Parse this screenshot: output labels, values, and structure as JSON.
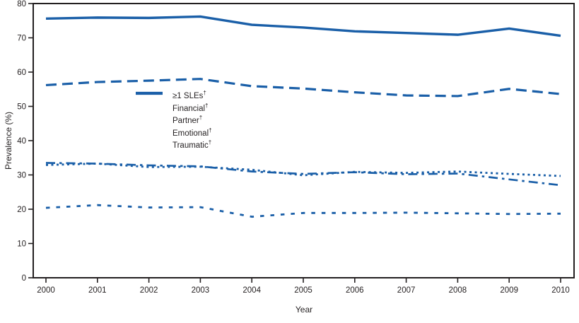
{
  "chart_data": {
    "type": "line",
    "title": "",
    "xlabel": "Year",
    "ylabel": "Prevalence (%)",
    "x": [
      2000,
      2001,
      2002,
      2003,
      2004,
      2005,
      2006,
      2007,
      2008,
      2009,
      2010
    ],
    "xlim": [
      2000,
      2010
    ],
    "ylim": [
      0,
      80
    ],
    "ytick_interval": 10,
    "yticks": [
      0,
      10,
      20,
      30,
      40,
      50,
      60,
      70,
      80
    ],
    "grid": false,
    "legend_position": "inside-upper-left",
    "line_color": "#1a5fa8",
    "axis_color": "#231f20",
    "background_color": "#ffffff",
    "series": [
      {
        "name": "≥1 SLEs",
        "superscript": "†",
        "line_style": "solid",
        "values": [
          75.6,
          75.9,
          75.8,
          76.2,
          73.8,
          73.0,
          71.9,
          71.4,
          70.9,
          72.7,
          70.6
        ]
      },
      {
        "name": "Financial",
        "superscript": "†",
        "line_style": "long-dash",
        "values": [
          56.2,
          57.1,
          57.5,
          58.0,
          55.9,
          55.2,
          54.1,
          53.2,
          53.0,
          55.1,
          53.6
        ]
      },
      {
        "name": "Partner",
        "superscript": "†",
        "line_style": "dash-dot",
        "values": [
          33.5,
          33.3,
          32.8,
          32.5,
          31.0,
          30.3,
          30.8,
          30.2,
          30.4,
          28.7,
          27.0
        ]
      },
      {
        "name": "Emotional",
        "superscript": "†",
        "line_style": "dotted",
        "values": [
          32.9,
          33.3,
          32.3,
          32.4,
          31.5,
          29.9,
          30.9,
          30.6,
          31.0,
          30.3,
          29.7
        ]
      },
      {
        "name": "Traumatic",
        "superscript": "†",
        "line_style": "short-dash",
        "values": [
          20.4,
          21.2,
          20.5,
          20.6,
          17.8,
          18.9,
          18.9,
          19.0,
          18.8,
          18.6,
          18.7
        ]
      }
    ]
  }
}
